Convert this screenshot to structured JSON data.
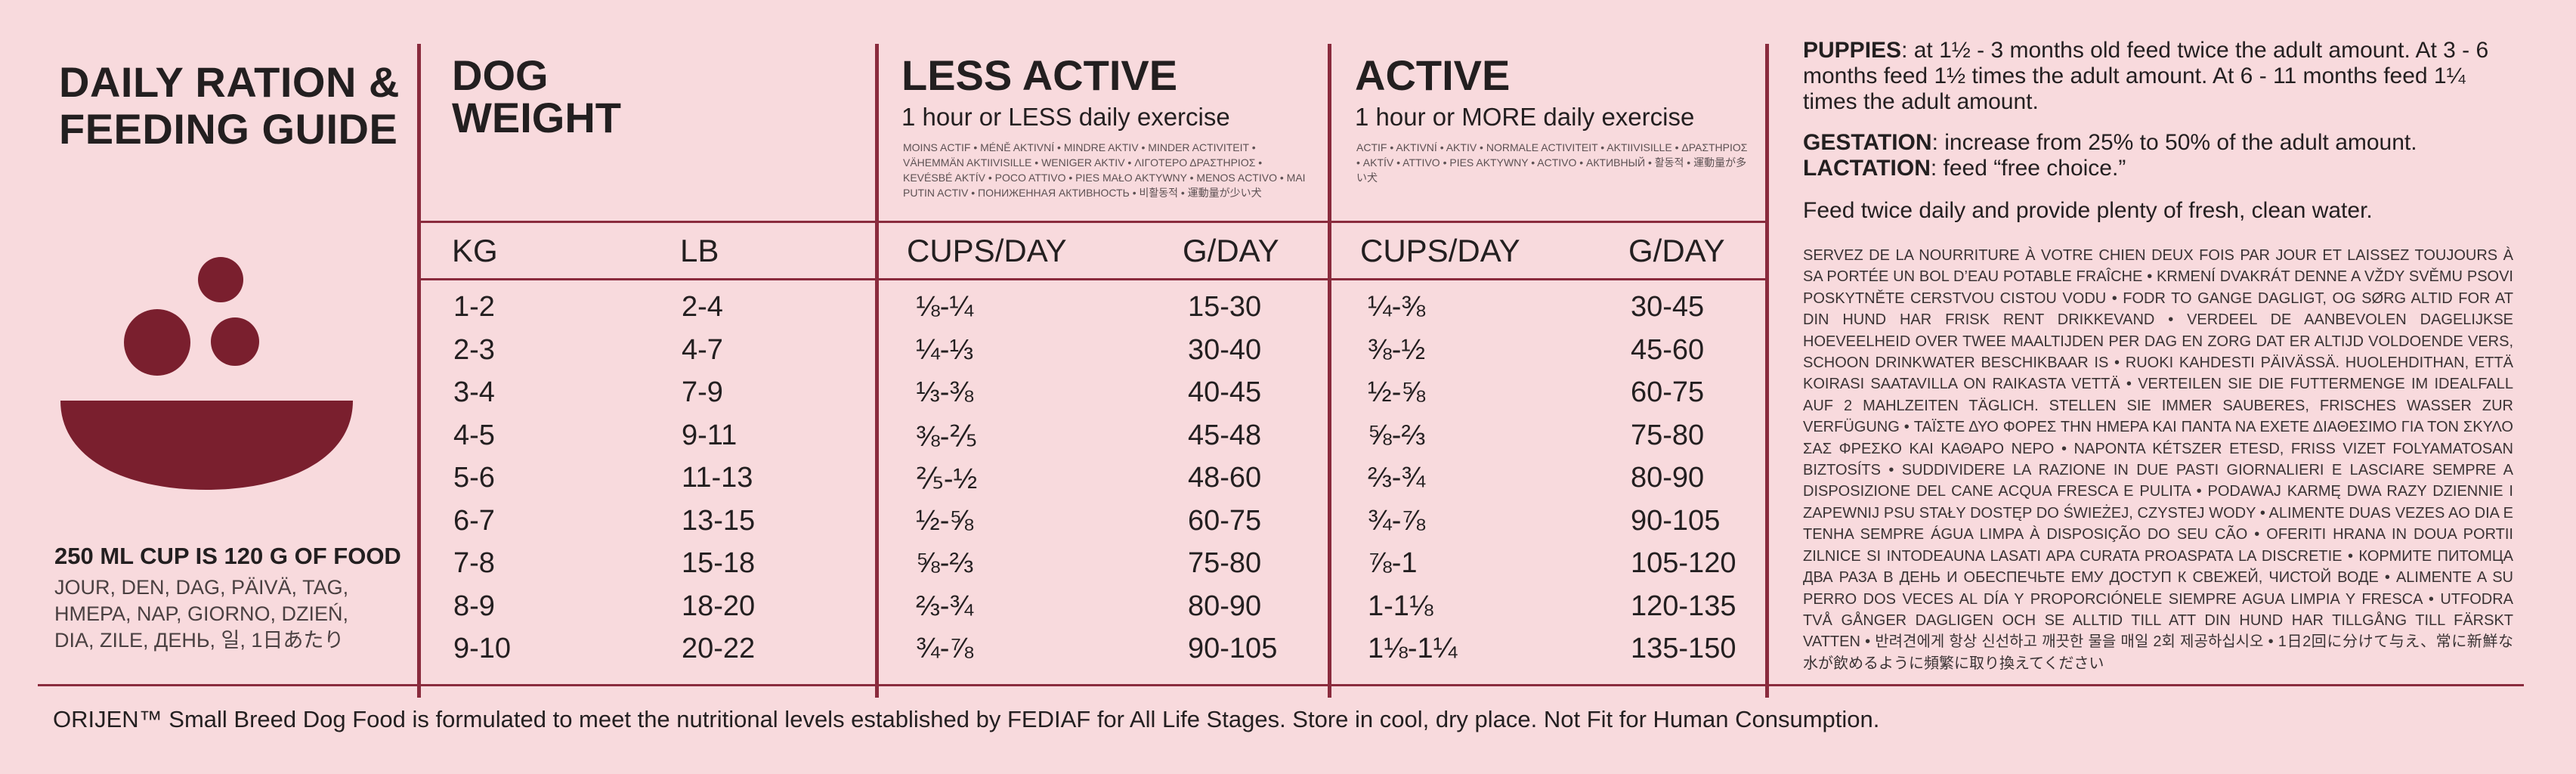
{
  "title_lines": [
    "DAILY RATION &",
    "FEEDING GUIDE"
  ],
  "cup_note": "250 ML CUP IS 120 G OF FOOD",
  "days_text": "JOUR, DEN, DAG, PÄIVÄ, TAG, HMEPA, NAP, GIORNO, DZIEŃ, DIA, ZILE, ДЕНЬ, 일, 1日あたり",
  "colors": {
    "background": "#f8dadd",
    "accent": "#8a2b3d",
    "bowl": "#7a1f2e"
  },
  "icons": [
    "food-ball-icon",
    "bowl-icon"
  ],
  "dog_weight": {
    "heading_lines": [
      "DOG",
      "WEIGHT"
    ],
    "col_kg": "KG",
    "col_lb": "LB"
  },
  "less_active": {
    "heading": "LESS ACTIVE",
    "subheading": "1 hour or LESS daily exercise",
    "translations": "MOINS ACTIF • MÉNĚ AKTIVNÍ • MINDRE AKTIV • MINDER ACTIVITEIT • VÄHEMMÄN AKTIIVISILLE • WENIGER AKTIV • ΛΙΓΟΤΕΡΟ ΔΡΑΣΤΗΡΙΟΣ • KEVÉSBÉ AKTÍV • POCO ATTIVO • PIES MAŁO AKTYWNY • MENOS ACTIVO • MAI PUTIN ACTIV • ПОНИЖЕННАЯ АКТИВНОСТЬ • 비활동적 • 運動量が少い犬",
    "col_cups": "CUPS/DAY",
    "col_g": "G/DAY"
  },
  "active": {
    "heading": "ACTIVE",
    "subheading": "1 hour or MORE daily exercise",
    "translations": "ACTIF • AKTIVNÍ • AKTIV • NORMALE ACTIVITEIT • AKTIIVISILLE • ΔΡΑΣΤΗΡΙΟΣ • AKTÍV • ATTIVO • PIES AKTYWNY • ACTIVO • АКТИВНЫЙ • 활동적 • 運動量が多い犬",
    "col_cups": "CUPS/DAY",
    "col_g": "G/DAY"
  },
  "rows": [
    {
      "kg": "1-2",
      "lb": "2-4",
      "less_cups": "⅛-¼",
      "less_g": "15-30",
      "active_cups": "¼-⅜",
      "active_g": "30-45"
    },
    {
      "kg": "2-3",
      "lb": "4-7",
      "less_cups": "¼-⅓",
      "less_g": "30-40",
      "active_cups": "⅜-½",
      "active_g": "45-60"
    },
    {
      "kg": "3-4",
      "lb": "7-9",
      "less_cups": "⅓-⅜",
      "less_g": "40-45",
      "active_cups": "½-⅝",
      "active_g": "60-75"
    },
    {
      "kg": "4-5",
      "lb": "9-11",
      "less_cups": "⅜-⅖",
      "less_g": "45-48",
      "active_cups": "⅝-⅔",
      "active_g": "75-80"
    },
    {
      "kg": "5-6",
      "lb": "11-13",
      "less_cups": "⅖-½",
      "less_g": "48-60",
      "active_cups": "⅔-¾",
      "active_g": "80-90"
    },
    {
      "kg": "6-7",
      "lb": "13-15",
      "less_cups": "½-⅝",
      "less_g": "60-75",
      "active_cups": "¾-⅞",
      "active_g": "90-105"
    },
    {
      "kg": "7-8",
      "lb": "15-18",
      "less_cups": "⅝-⅔",
      "less_g": "75-80",
      "active_cups": "⅞-1",
      "active_g": "105-120"
    },
    {
      "kg": "8-9",
      "lb": "18-20",
      "less_cups": "⅔-¾",
      "less_g": "80-90",
      "active_cups": "1-1⅛",
      "active_g": "120-135"
    },
    {
      "kg": "9-10",
      "lb": "20-22",
      "less_cups": "¾-⅞",
      "less_g": "90-105",
      "active_cups": "1⅛-1¼",
      "active_g": "135-150"
    }
  ],
  "info": {
    "puppies_label": "PUPPIES",
    "puppies_text": ": at 1½ - 3 months old feed twice the adult amount. At 3 - 6 months feed 1½ times the adult amount. At 6 - 11 months feed 1¼ times the adult amount.",
    "gestation_label": "GESTATION",
    "gestation_text": ": increase from 25% to 50% of the adult amount.",
    "lactation_label": "LACTATION",
    "lactation_text": ": feed “free choice.”",
    "twice_daily": "Feed twice daily and provide plenty of fresh, clean water.",
    "multilingual": "SERVEZ DE LA NOURRITURE À VOTRE CHIEN DEUX FOIS PAR JOUR ET LAISSEZ TOUJOURS À SA PORTÉE UN BOL D’EAU POTABLE FRAÎCHE • KRMENÍ DVAKRÁT DENNE A VŽDY SVĚMU PSOVI POSKYTNĚTE CERSTVOU CISTOU VODU • FODR TO GANGE DAGLIGT, OG SØRG ALTID FOR AT DIN HUND HAR FRISK RENT DRIKKEVAND • VERDEEL DE AANBEVOLEN DAGELIJKSE HOEVEELHEID OVER TWEE MAALTIJDEN PER DAG EN ZORG DAT ER ALTIJD VOLDOENDE VERS, SCHOON DRINKWATER BESCHIKBAAR IS • RUOKI KAHDESTI PÄIVÄSSÄ. HUOLEHDITHAN, ETTÄ KOIRASI SAATAVILLA ON RAIKASTA VETTÄ • VERTEILEN SIE DIE FUTTERMENGE IM IDEALFALL AUF 2 MAHLZEITEN TÄGLICH. STELLEN SIE IMMER SAUBERES, FRISCHES WASSER ZUR VERFÜGUNG • ΤΑΪΣΤΕ ΔΥΟ ΦΟΡΕΣ ΤΗΝ ΗΜΕΡΑ ΚΑΙ ΠΑΝΤΑ ΝΑ ΕΧΕΤΕ ΔΙΑΘΕΣΙΜΟ ΓΙΑ ΤΟΝ ΣΚΥΛΟ ΣΑΣ ΦΡΕΣΚΟ ΚΑΙ ΚΑΘΑΡΟ ΝΕΡΟ • NAPONTA KÉTSZER ETESD, FRISS VIZET FOLYAMATOSAN BIZTOSÍTS • SUDDIVIDERE LA RAZIONE IN DUE PASTI GIORNALIERI E LASCIARE SEMPRE A DISPOSIZIONE DEL CANE ACQUA FRESCA E PULITA • PODAWAJ KARMĘ DWA RAZY DZIENNIE I ZAPEWNIJ PSU STAŁY DOSTĘP DO ŚWIEŻEJ, CZYSTEJ WODY • ALIMENTE DUAS VEZES AO DIA E TENHA SEMPRE ÁGUA LIMPA À DISPOSIÇÃO DO SEU CÃO • OFERITI HRANA IN DOUA PORTII ZILNICE SI INTODEAUNA LASATI APA CURATA PROASPATA LA DISCRETIE • КОРМИТЕ ПИТОМЦА ДВА РАЗА В ДЕНЬ И ОБЕСПЕЧЬТЕ ЕМУ ДОСТУП К СВЕЖЕЙ, ЧИСТОЙ ВОДЕ • ALIMENTE A SU PERRO DOS VECES AL DÍA Y PROPORCIÓNELE SIEMPRE AGUA LIMPIA Y FRESCA • UTFODRA TVÅ GÅNGER DAGLIGEN OCH SE ALLTID TILL ATT DIN HUND HAR TILLGÅNG TILL FÄRSKT VATTEN • 반려견에게 항상 신선하고 깨끗한 물을 매일 2회 제공하십시오 • 1日2回に分けて与え、常に新鮮な水が飲めるように頻繁に取り換えてください"
  },
  "footer": "ORIJEN™ Small Breed Dog Food is formulated to meet the nutritional levels established by FEDIAF for All Life Stages. Store in cool, dry place. Not Fit for Human Consumption."
}
